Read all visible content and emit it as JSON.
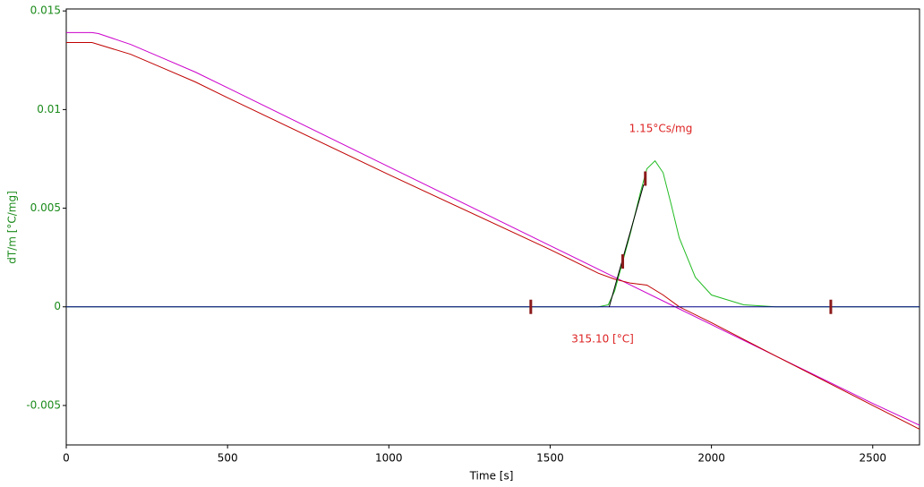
{
  "chart_data": {
    "type": "line",
    "x_label": "Time [s]",
    "y_label": "dT/m  [°C/mg]",
    "xlim": [
      0,
      2645
    ],
    "ylim": [
      -0.007,
      0.0151
    ],
    "xticks": [
      0,
      500,
      1000,
      1500,
      2000,
      2500
    ],
    "yticks": [
      -0.005,
      0,
      0.005,
      0.01,
      0.015
    ],
    "grid": false,
    "series": [
      {
        "color": "#cc00cc",
        "x": [
          0,
          80,
          100,
          200,
          300,
          400,
          500,
          1000,
          1500,
          1700,
          1900,
          2200,
          2500,
          2645
        ],
        "values": [
          0.0139,
          0.0139,
          0.01385,
          0.0133,
          0.0126,
          0.0119,
          0.0111,
          0.0071,
          0.0031,
          0.0015,
          -0.0001,
          -0.0025,
          -0.0049,
          -0.006
        ]
      },
      {
        "color": "#c00000",
        "x": [
          0,
          80,
          200,
          300,
          400,
          500,
          1000,
          1500,
          1650,
          1700,
          1750,
          1800,
          1850,
          1900,
          2000,
          2200,
          2500,
          2645
        ],
        "values": [
          0.0134,
          0.0134,
          0.0128,
          0.0121,
          0.0114,
          0.0106,
          0.0067,
          0.0029,
          0.0017,
          0.0014,
          0.0012,
          0.0011,
          0.0006,
          0.0,
          -0.0008,
          -0.0025,
          -0.005,
          -0.0062
        ]
      },
      {
        "color": "#22bb22",
        "x": [
          0,
          1650,
          1680,
          1700,
          1725,
          1750,
          1780,
          1800,
          1825,
          1850,
          1875,
          1900,
          1950,
          2000,
          2100,
          2200,
          2645
        ],
        "values": [
          0,
          0,
          0.0001,
          0.0008,
          0.0023,
          0.0038,
          0.0058,
          0.007,
          0.0074,
          0.0068,
          0.0052,
          0.0035,
          0.0015,
          0.0006,
          0.0001,
          0,
          0
        ]
      },
      {
        "color": "#000088",
        "x": [
          0,
          2645
        ],
        "values": [
          0,
          0
        ]
      },
      {
        "color": "#000000",
        "x": [
          1683,
          1790
        ],
        "values": [
          0,
          0.0062
        ]
      }
    ],
    "markers": {
      "color": "#8b1a1a",
      "x": [
        1440,
        1725,
        1795,
        2370
      ],
      "values": [
        0,
        0.0023,
        0.0065,
        0
      ]
    },
    "annotations": [
      "1.15°Cs/mg",
      "315.10 [°C]"
    ]
  }
}
